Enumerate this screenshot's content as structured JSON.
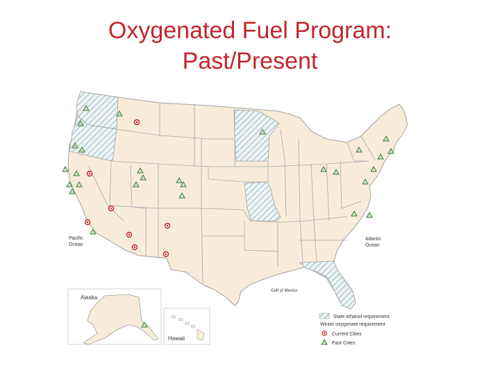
{
  "slide": {
    "title_line1": "Oxygenated Fuel Program:",
    "title_line2": "Past/Present"
  },
  "map": {
    "ocean_labels": {
      "pacific_line1": "Pacific",
      "pacific_line2": "Ocean",
      "atlantic_line1": "Atlantic",
      "atlantic_line2": "Ocean",
      "gulf": "Gulf of Mexico"
    },
    "insets": {
      "alaska": "Alaska",
      "hawaii": "Hawaii"
    },
    "legend": {
      "state_ethanol": "State ethanol requirement",
      "winter_oxygenate": "Winter oxygenate requirement",
      "current_cities": "Current Cities",
      "past_cities": "Past Cities"
    },
    "colors": {
      "land": "#f6ecd9",
      "border": "#a0a0a0",
      "hatch": "#7fa6b4",
      "current_city": "#c0272d",
      "past_city": "#3f7a3a"
    },
    "hatched_states": [
      "Washington",
      "Oregon",
      "Minnesota",
      "Missouri",
      "Florida"
    ]
  }
}
